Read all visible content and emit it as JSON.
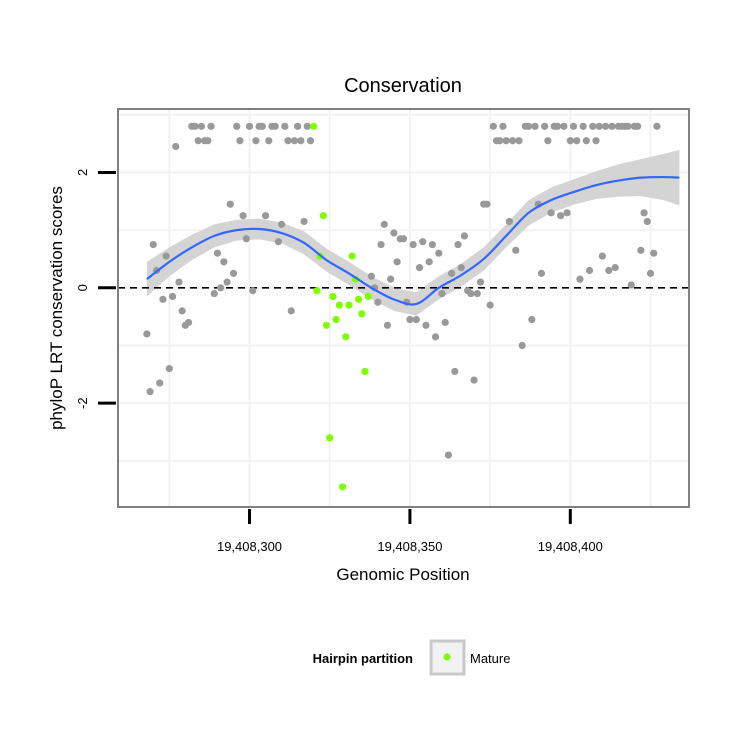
{
  "chart_data": {
    "type": "scatter",
    "title": "Conservation",
    "xlabel": "Genomic Position",
    "ylabel": "phyloP LRT conservation scores",
    "xlim": [
      19408259,
      19408437
    ],
    "ylim": [
      -3.8,
      3.1
    ],
    "x_ticks": [
      19408300,
      19408350,
      19408400
    ],
    "x_tick_labels": [
      "19,408,300",
      "19,408,350",
      "19,408,400"
    ],
    "y_ticks": [
      -2,
      0,
      2
    ],
    "y_tick_labels": [
      "-2",
      "0",
      "2"
    ],
    "reference_line": {
      "y": 0,
      "style": "dashed"
    },
    "legend": {
      "title": "Hairpin partition",
      "entries": [
        {
          "label": "Mature",
          "color": "#7fff00"
        }
      ],
      "position": "bottom"
    },
    "colors": {
      "other": "#999999",
      "mature": "#7fff00",
      "smooth": "#3366ff",
      "band": "#d4d4d4",
      "panel_border": "#7f7f7f",
      "grid": "#f2f2f2"
    },
    "series": [
      {
        "name": "Other",
        "points": [
          [
            19408268,
            -0.8
          ],
          [
            19408269,
            -1.8
          ],
          [
            19408270,
            0.75
          ],
          [
            19408271,
            0.3
          ],
          [
            19408272,
            -1.65
          ],
          [
            19408273,
            -0.2
          ],
          [
            19408274,
            0.55
          ],
          [
            19408275,
            -1.4
          ],
          [
            19408276,
            -0.15
          ],
          [
            19408277,
            2.45
          ],
          [
            19408278,
            0.1
          ],
          [
            19408279,
            -0.4
          ],
          [
            19408280,
            -0.65
          ],
          [
            19408281,
            -0.6
          ],
          [
            19408282,
            2.8
          ],
          [
            19408283,
            2.8
          ],
          [
            19408284,
            2.55
          ],
          [
            19408285,
            2.8
          ],
          [
            19408286,
            2.55
          ],
          [
            19408287,
            2.55
          ],
          [
            19408288,
            2.8
          ],
          [
            19408289,
            -0.1
          ],
          [
            19408290,
            0.6
          ],
          [
            19408291,
            0.0
          ],
          [
            19408292,
            0.45
          ],
          [
            19408293,
            0.1
          ],
          [
            19408294,
            1.45
          ],
          [
            19408295,
            0.25
          ],
          [
            19408296,
            2.8
          ],
          [
            19408297,
            2.55
          ],
          [
            19408298,
            1.25
          ],
          [
            19408299,
            0.85
          ],
          [
            19408300,
            2.8
          ],
          [
            19408301,
            -0.05
          ],
          [
            19408302,
            2.55
          ],
          [
            19408303,
            2.8
          ],
          [
            19408304,
            2.8
          ],
          [
            19408305,
            1.25
          ],
          [
            19408306,
            2.55
          ],
          [
            19408307,
            2.8
          ],
          [
            19408308,
            2.8
          ],
          [
            19408309,
            0.8
          ],
          [
            19408310,
            1.1
          ],
          [
            19408311,
            2.8
          ],
          [
            19408312,
            2.55
          ],
          [
            19408313,
            -0.4
          ],
          [
            19408314,
            2.55
          ],
          [
            19408315,
            2.8
          ],
          [
            19408316,
            2.55
          ],
          [
            19408317,
            1.15
          ],
          [
            19408318,
            2.8
          ],
          [
            19408319,
            2.55
          ],
          [
            19408338,
            0.2
          ],
          [
            19408339,
            0.0
          ],
          [
            19408340,
            -0.25
          ],
          [
            19408341,
            0.75
          ],
          [
            19408342,
            1.1
          ],
          [
            19408343,
            -0.65
          ],
          [
            19408344,
            0.15
          ],
          [
            19408345,
            0.95
          ],
          [
            19408346,
            0.45
          ],
          [
            19408347,
            0.85
          ],
          [
            19408348,
            0.85
          ],
          [
            19408349,
            -0.25
          ],
          [
            19408350,
            -0.55
          ],
          [
            19408351,
            0.75
          ],
          [
            19408352,
            -0.55
          ],
          [
            19408353,
            0.35
          ],
          [
            19408354,
            0.8
          ],
          [
            19408355,
            -0.65
          ],
          [
            19408356,
            0.45
          ],
          [
            19408357,
            0.75
          ],
          [
            19408358,
            -0.85
          ],
          [
            19408359,
            0.6
          ],
          [
            19408360,
            -0.1
          ],
          [
            19408361,
            -0.6
          ],
          [
            19408362,
            -2.9
          ],
          [
            19408363,
            0.25
          ],
          [
            19408364,
            -1.45
          ],
          [
            19408365,
            0.75
          ],
          [
            19408366,
            0.35
          ],
          [
            19408367,
            0.9
          ],
          [
            19408368,
            -0.05
          ],
          [
            19408369,
            -0.1
          ],
          [
            19408370,
            -1.6
          ],
          [
            19408371,
            -0.1
          ],
          [
            19408372,
            0.1
          ],
          [
            19408373,
            1.45
          ],
          [
            19408374,
            1.45
          ],
          [
            19408375,
            -0.3
          ],
          [
            19408376,
            2.8
          ],
          [
            19408377,
            2.55
          ],
          [
            19408378,
            2.55
          ],
          [
            19408379,
            2.8
          ],
          [
            19408380,
            2.55
          ],
          [
            19408381,
            1.15
          ],
          [
            19408382,
            2.55
          ],
          [
            19408383,
            0.65
          ],
          [
            19408384,
            2.55
          ],
          [
            19408385,
            -1.0
          ],
          [
            19408386,
            2.8
          ],
          [
            19408387,
            2.8
          ],
          [
            19408388,
            -0.55
          ],
          [
            19408389,
            2.8
          ],
          [
            19408390,
            1.45
          ],
          [
            19408391,
            0.25
          ],
          [
            19408392,
            2.8
          ],
          [
            19408393,
            2.55
          ],
          [
            19408394,
            1.3
          ],
          [
            19408395,
            2.8
          ],
          [
            19408396,
            2.8
          ],
          [
            19408397,
            1.25
          ],
          [
            19408398,
            2.8
          ],
          [
            19408399,
            1.3
          ],
          [
            19408400,
            2.55
          ],
          [
            19408401,
            2.8
          ],
          [
            19408402,
            2.55
          ],
          [
            19408403,
            0.15
          ],
          [
            19408404,
            2.8
          ],
          [
            19408405,
            2.55
          ],
          [
            19408406,
            0.3
          ],
          [
            19408407,
            2.8
          ],
          [
            19408408,
            2.55
          ],
          [
            19408409,
            2.8
          ],
          [
            19408410,
            0.55
          ],
          [
            19408411,
            2.8
          ],
          [
            19408412,
            0.3
          ],
          [
            19408413,
            2.8
          ],
          [
            19408414,
            0.35
          ],
          [
            19408415,
            2.8
          ],
          [
            19408416,
            2.8
          ],
          [
            19408417,
            2.8
          ],
          [
            19408418,
            2.8
          ],
          [
            19408419,
            0.05
          ],
          [
            19408420,
            2.8
          ],
          [
            19408421,
            2.8
          ],
          [
            19408422,
            0.65
          ],
          [
            19408423,
            1.3
          ],
          [
            19408424,
            1.15
          ],
          [
            19408425,
            0.25
          ],
          [
            19408426,
            0.6
          ],
          [
            19408427,
            2.8
          ]
        ]
      },
      {
        "name": "Mature",
        "points": [
          [
            19408320,
            2.8
          ],
          [
            19408321,
            -0.05
          ],
          [
            19408322,
            0.55
          ],
          [
            19408323,
            1.25
          ],
          [
            19408324,
            -0.65
          ],
          [
            19408325,
            -2.6
          ],
          [
            19408326,
            -0.15
          ],
          [
            19408327,
            -0.55
          ],
          [
            19408328,
            -0.3
          ],
          [
            19408329,
            -3.45
          ],
          [
            19408330,
            -0.85
          ],
          [
            19408331,
            -0.3
          ],
          [
            19408332,
            0.55
          ],
          [
            19408333,
            0.15
          ],
          [
            19408334,
            -0.2
          ],
          [
            19408335,
            -0.45
          ],
          [
            19408336,
            -1.45
          ],
          [
            19408337,
            -0.15
          ]
        ]
      }
    ],
    "smooth_curve": {
      "x": [
        19408268,
        19408275,
        19408282,
        19408289,
        19408296,
        19408303,
        19408310,
        19408317,
        19408324,
        19408331,
        19408338,
        19408345,
        19408352,
        19408359,
        19408366,
        19408373,
        19408380,
        19408387,
        19408394,
        19408401,
        19408408,
        19408415,
        19408422,
        19408429,
        19408434
      ],
      "y": [
        0.15,
        0.45,
        0.7,
        0.9,
        1.0,
        1.02,
        0.95,
        0.78,
        0.48,
        0.25,
        0.0,
        -0.2,
        -0.28,
        0.0,
        0.22,
        0.5,
        0.9,
        1.3,
        1.52,
        1.66,
        1.78,
        1.86,
        1.91,
        1.92,
        1.91
      ],
      "se": [
        0.3,
        0.25,
        0.22,
        0.2,
        0.18,
        0.18,
        0.18,
        0.2,
        0.2,
        0.2,
        0.2,
        0.2,
        0.2,
        0.2,
        0.2,
        0.2,
        0.2,
        0.22,
        0.22,
        0.22,
        0.24,
        0.28,
        0.32,
        0.4,
        0.48
      ]
    }
  }
}
